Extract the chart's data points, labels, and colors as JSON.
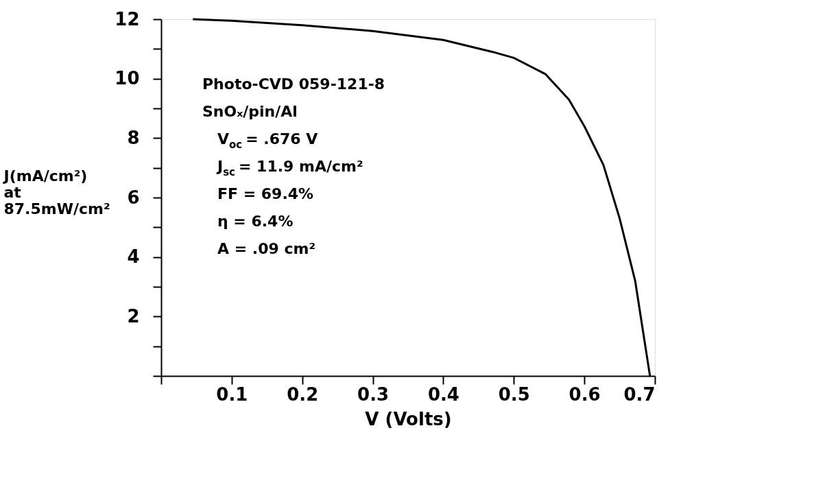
{
  "chart_data": {
    "type": "line",
    "xlabel": "V (Volts)",
    "ylabel": "J(mA/cm²)\nat\n87.5mW/cm²",
    "x": [
      0.045,
      0.1,
      0.2,
      0.3,
      0.4,
      0.47,
      0.5,
      0.545,
      0.578,
      0.6,
      0.627,
      0.65,
      0.672,
      0.693
    ],
    "series": [
      {
        "color": "#000000",
        "values": [
          12,
          11.95,
          11.8,
          11.6,
          11.3,
          10.9,
          10.7,
          10.15,
          9.3,
          8.4,
          7.1,
          5.3,
          3.2,
          0
        ]
      }
    ],
    "xlim": [
      0,
      0.7
    ],
    "ylim": [
      0,
      12
    ],
    "xticks": [
      {
        "value": 0,
        "label": null
      },
      0.1,
      0.2,
      0.3,
      0.4,
      0.5,
      0.6,
      0.7
    ],
    "yticks": [
      {
        "value": 0,
        "label": null
      },
      {
        "value": 1,
        "label": null
      },
      2,
      {
        "value": 3,
        "label": null
      },
      4,
      {
        "value": 5,
        "label": null
      },
      6,
      {
        "value": 7,
        "label": null
      },
      8,
      {
        "value": 9,
        "label": null
      },
      10,
      {
        "value": 11,
        "label": null
      },
      12
    ],
    "grid": false,
    "marker": "none",
    "line_style": "solid",
    "annotations": [
      "Photo-CVD 059-121-8",
      "SnOₓ/pin/Al",
      "V$_{oc}$ = .676 V",
      "J$_{sc}$ = 11.9 mA/cm²",
      "FF = 69.4%",
      "η = 6.4%",
      "A = .09 cm²"
    ]
  }
}
